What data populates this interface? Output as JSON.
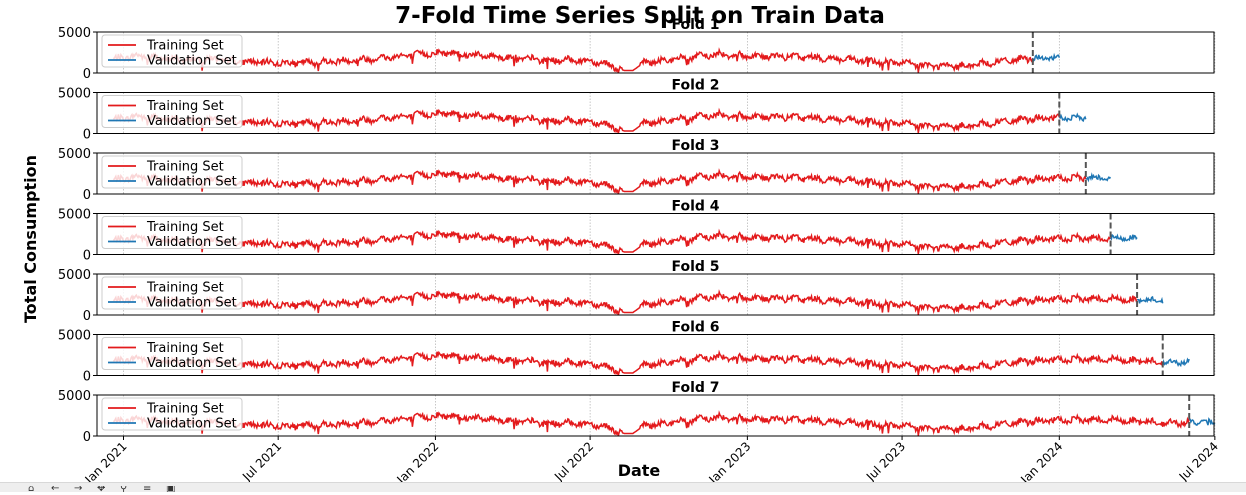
{
  "figure": {
    "title": "7-Fold Time Series Split on Train Data",
    "xlabel": "Date",
    "ylabel": "Total Consumption"
  },
  "toolbar": {
    "icons": [
      "home-icon",
      "back-icon",
      "forward-icon",
      "pan-icon",
      "zoom-icon",
      "configure-icon",
      "save-icon"
    ]
  },
  "colors": {
    "train": "#e31a1c",
    "validation": "#1f77b4",
    "split_line": "#555555",
    "grid": "#b0b0b0"
  },
  "chart_data": {
    "type": "line",
    "x_axis": {
      "type": "date",
      "range": [
        "2020-12-01",
        "2024-06-30"
      ],
      "ticks": [
        {
          "date": "2021-01-01",
          "label": "Jan 2021"
        },
        {
          "date": "2021-07-01",
          "label": "Jul 2021"
        },
        {
          "date": "2022-01-01",
          "label": "Jan 2022"
        },
        {
          "date": "2022-07-01",
          "label": "Jul 2022"
        },
        {
          "date": "2023-01-01",
          "label": "Jan 2023"
        },
        {
          "date": "2023-07-01",
          "label": "Jul 2023"
        },
        {
          "date": "2024-01-01",
          "label": "Jan 2024"
        },
        {
          "date": "2024-07-01",
          "label": "Jul 2024"
        }
      ]
    },
    "y_axis": {
      "range": [
        0,
        5000
      ],
      "ticks": [
        0,
        5000
      ]
    },
    "grid": true,
    "legend": {
      "position": "top-left",
      "entries": [
        "Training Set",
        "Validation Set"
      ]
    },
    "train_profile": {
      "x": [
        "2020-12-20",
        "2021-01-15",
        "2021-02-15",
        "2021-03-15",
        "2021-04-15",
        "2021-05-15",
        "2021-06-15",
        "2021-07-15",
        "2021-08-15",
        "2021-09-15",
        "2021-10-15",
        "2021-11-15",
        "2021-12-15",
        "2022-01-15",
        "2022-02-15",
        "2022-03-15",
        "2022-04-15",
        "2022-05-15",
        "2022-06-15",
        "2022-07-15",
        "2022-08-10",
        "2022-08-20",
        "2022-09-01",
        "2022-10-01",
        "2022-11-01",
        "2022-12-01",
        "2023-01-01",
        "2023-02-01",
        "2023-03-01",
        "2023-04-01",
        "2023-05-01",
        "2023-06-01",
        "2023-07-01",
        "2023-08-01",
        "2023-09-01",
        "2023-10-01",
        "2023-11-01",
        "2023-12-01",
        "2024-01-01",
        "2024-02-01",
        "2024-03-01",
        "2024-04-01",
        "2024-05-01"
      ],
      "y": [
        1700,
        2100,
        1800,
        1600,
        1700,
        1400,
        1300,
        1200,
        1300,
        1500,
        1700,
        2000,
        2300,
        2500,
        2200,
        2000,
        1800,
        1500,
        1600,
        1300,
        300,
        300,
        1200,
        1600,
        2000,
        2300,
        2100,
        2000,
        2000,
        1800,
        1600,
        1400,
        1200,
        900,
        800,
        1100,
        1500,
        1800,
        1900,
        2000,
        2000,
        1800,
        1600
      ]
    },
    "folds": [
      {
        "name": "Fold 1",
        "split_date": "2023-12-01",
        "validation_end": "2024-01-01",
        "validation_level": 1800
      },
      {
        "name": "Fold 2",
        "split_date": "2024-01-01",
        "validation_end": "2024-02-01",
        "validation_level": 1900
      },
      {
        "name": "Fold 3",
        "split_date": "2024-02-01",
        "validation_end": "2024-03-01",
        "validation_level": 2000
      },
      {
        "name": "Fold 4",
        "split_date": "2024-03-01",
        "validation_end": "2024-04-01",
        "validation_level": 2000
      },
      {
        "name": "Fold 5",
        "split_date": "2024-04-01",
        "validation_end": "2024-05-01",
        "validation_level": 1800
      },
      {
        "name": "Fold 6",
        "split_date": "2024-05-01",
        "validation_end": "2024-06-01",
        "validation_level": 1600
      },
      {
        "name": "Fold 7",
        "split_date": "2024-06-01",
        "validation_end": "2024-07-01",
        "validation_level": 1700
      }
    ]
  }
}
